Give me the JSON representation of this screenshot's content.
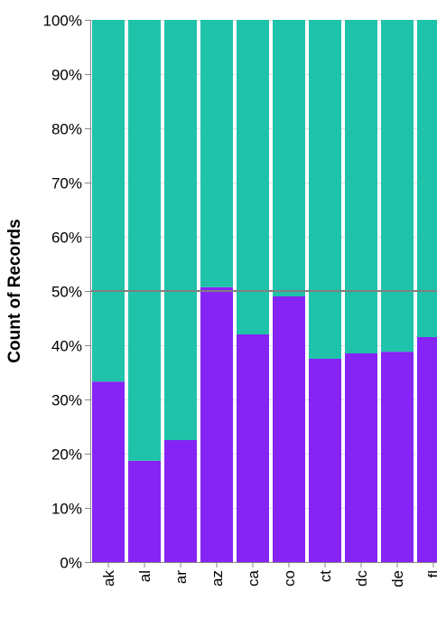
{
  "chart_data": {
    "type": "bar",
    "stacked": true,
    "normalized": true,
    "title": "",
    "xlabel": "",
    "ylabel": "Count of Records",
    "ylim": [
      0,
      1
    ],
    "y_ticks": [
      "0%",
      "10%",
      "20%",
      "30%",
      "40%",
      "50%",
      "60%",
      "70%",
      "80%",
      "90%",
      "100%"
    ],
    "y_tick_values": [
      0,
      0.1,
      0.2,
      0.3,
      0.4,
      0.5,
      0.6,
      0.7,
      0.8,
      0.9,
      1.0
    ],
    "categories": [
      "ak",
      "al",
      "ar",
      "az",
      "ca",
      "co",
      "ct",
      "dc",
      "de",
      "fl"
    ],
    "series": [
      {
        "color": "#8624f5",
        "values": [
          0.333,
          0.187,
          0.225,
          0.507,
          0.42,
          0.49,
          0.375,
          0.385,
          0.388,
          0.415
        ]
      },
      {
        "color": "#1fc3aa",
        "values": [
          0.667,
          0.813,
          0.775,
          0.493,
          0.58,
          0.51,
          0.625,
          0.615,
          0.612,
          0.585
        ]
      }
    ],
    "reference_line": {
      "y": 0.5,
      "color": "#808080"
    },
    "grid": true,
    "legend": "none"
  }
}
